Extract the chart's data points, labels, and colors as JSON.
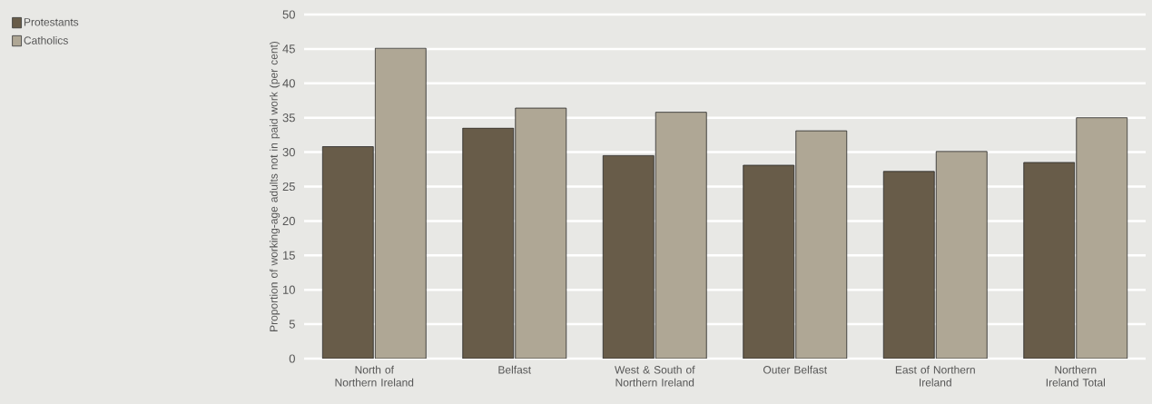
{
  "chart_data": {
    "type": "bar",
    "ylabel": "Proportion of working-age adults not in paid work (per cent)",
    "categories": [
      "North of Northern Ireland",
      "Belfast",
      "West & South of Northern Ireland",
      "Outer Belfast",
      "East of Northern Ireland",
      "Northern Ireland Total"
    ],
    "series": [
      {
        "name": "Protestants",
        "color": "#685c49",
        "values": [
          30.8,
          33.5,
          29.5,
          28.1,
          27.2,
          28.5
        ]
      },
      {
        "name": "Catholics",
        "color": "#afa795",
        "values": [
          45.1,
          36.4,
          35.8,
          33.1,
          30.1,
          35.0
        ]
      }
    ],
    "ylim": [
      0,
      50
    ],
    "yticks": [
      0,
      5,
      10,
      15,
      20,
      25,
      30,
      35,
      40,
      45,
      50
    ],
    "grid": "y",
    "legend": "top left"
  }
}
